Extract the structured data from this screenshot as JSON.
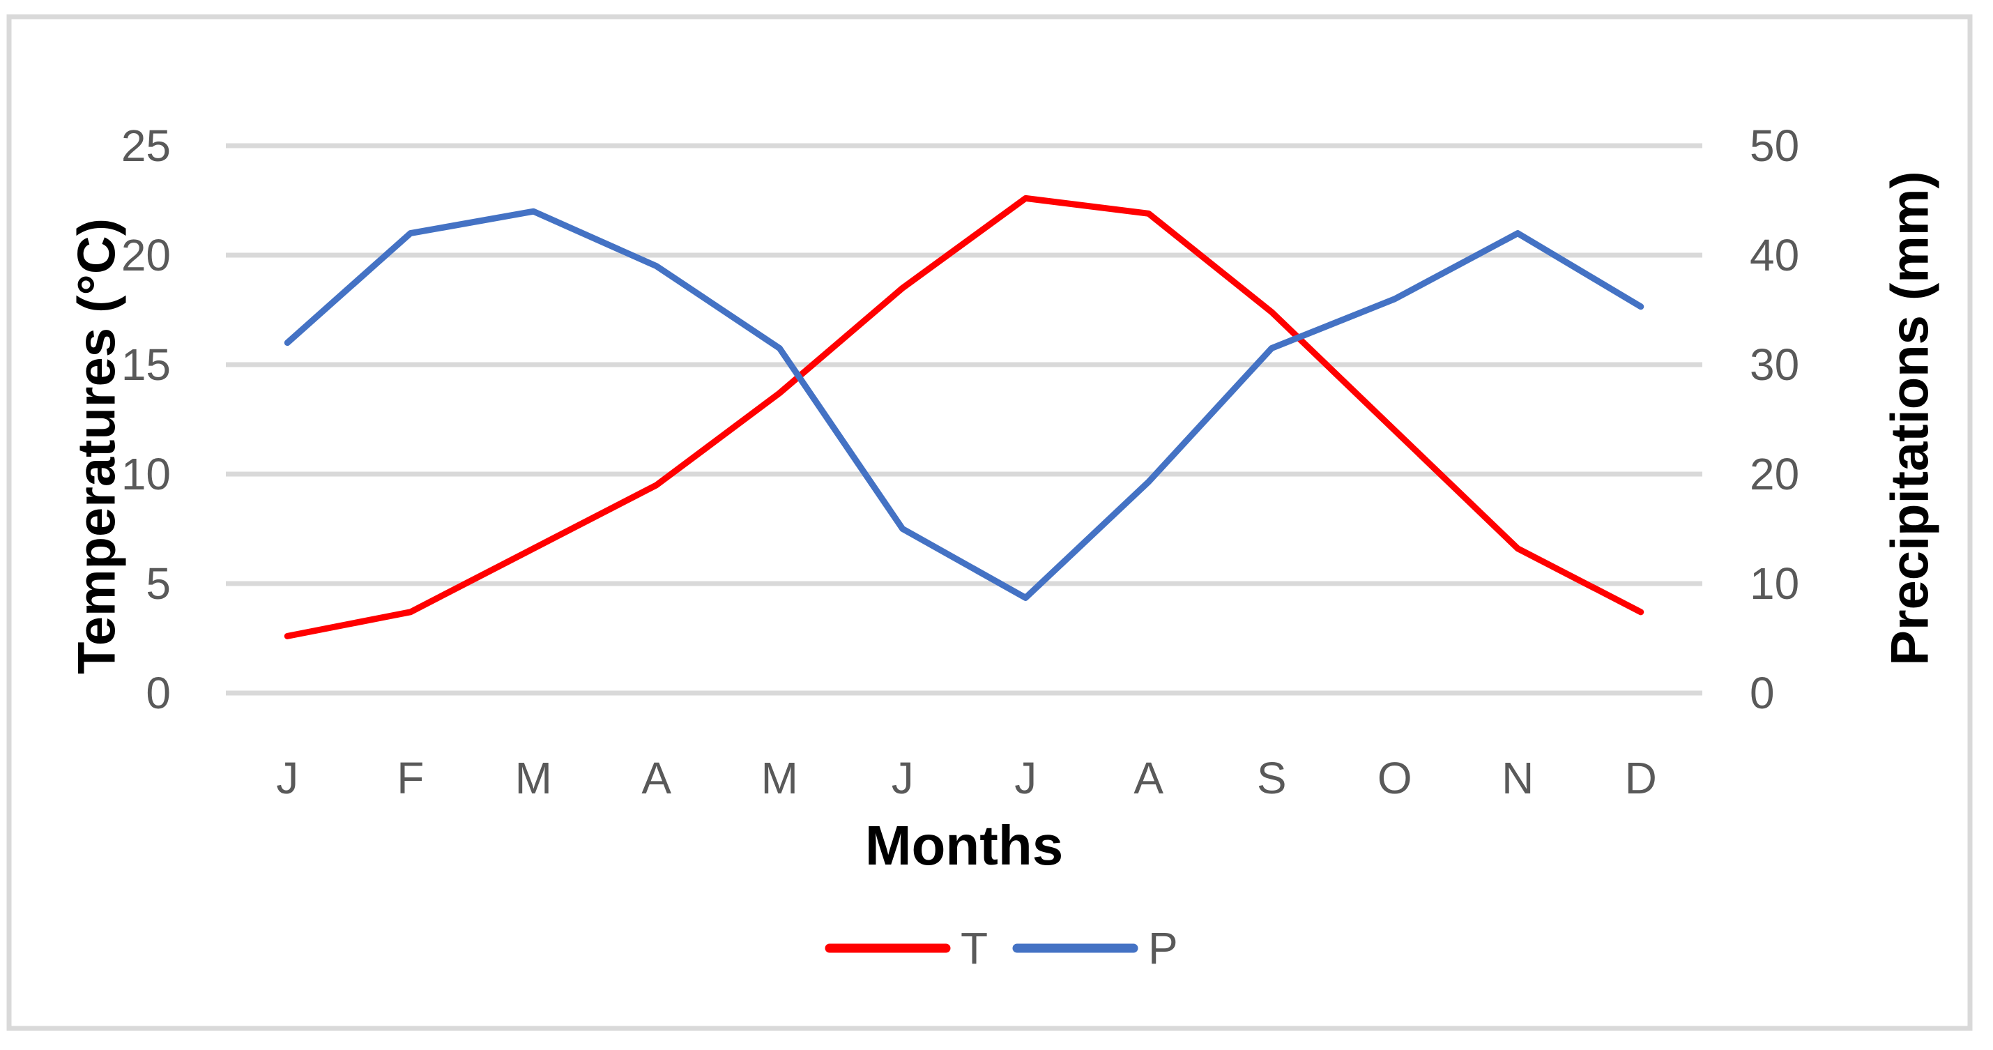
{
  "figure": {
    "background": "#FFFFFF",
    "border_color": "#D9D9D9"
  },
  "chart_data": {
    "type": "line",
    "title": "",
    "xlabel": "Months",
    "ylabel_left": "Temperatures (°C)",
    "ylabel_right": "Precipitations (mm)",
    "categories": [
      "J",
      "F",
      "M",
      "A",
      "M",
      "J",
      "J",
      "A",
      "S",
      "O",
      "N",
      "D"
    ],
    "series": [
      {
        "name": "T",
        "axis": "left",
        "color": "#FF0000",
        "values": [
          2.6,
          3.7,
          6.6,
          9.5,
          13.7,
          18.5,
          22.6,
          21.9,
          17.4,
          12,
          6.6,
          3.7
        ]
      },
      {
        "name": "P",
        "axis": "right",
        "color": "#4472C4",
        "values": [
          32,
          42,
          44,
          39,
          31.5,
          15,
          8.7,
          19.3,
          31.5,
          36,
          42,
          35.3
        ]
      }
    ],
    "left_axis": {
      "min": 0,
      "max": 25,
      "ticks": [
        25,
        20,
        15,
        10,
        5,
        0
      ]
    },
    "right_axis": {
      "min": 0,
      "max": 50,
      "ticks": [
        50,
        40,
        30,
        20,
        10,
        0
      ]
    },
    "grid": "horizontal",
    "gridline_color": "#D9D9D9",
    "tick_label_color": "#595959",
    "legend_position": "bottom",
    "legend_labels": {
      "t": "T",
      "p": "P"
    }
  }
}
